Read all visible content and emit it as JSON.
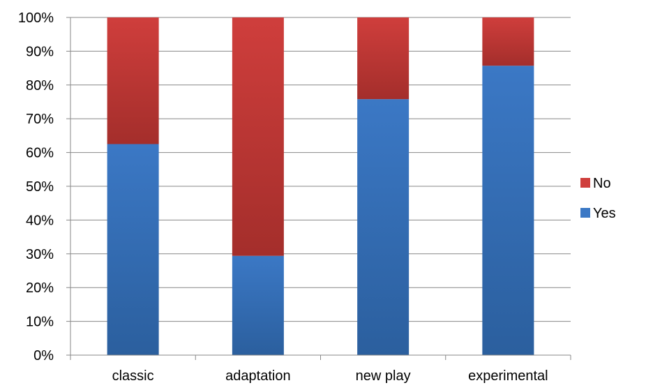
{
  "chart_data": {
    "type": "bar",
    "stacked": true,
    "percent": true,
    "categories": [
      "classic",
      "adaptation",
      "new play",
      "experimental"
    ],
    "series": [
      {
        "name": "Yes",
        "values": [
          62.5,
          29.4,
          75.8,
          85.7
        ]
      },
      {
        "name": "No",
        "values": [
          37.5,
          70.6,
          24.2,
          14.3
        ]
      }
    ],
    "ylim": [
      0,
      100
    ],
    "yticks": [
      "0%",
      "10%",
      "20%",
      "30%",
      "40%",
      "50%",
      "60%",
      "70%",
      "80%",
      "90%",
      "100%"
    ],
    "grid": true,
    "legend_placement": "right",
    "legend": [
      "No",
      "Yes"
    ],
    "colors": {
      "Yes": "#3b78c5",
      "Yes_dark": "#2b5f9e",
      "No": "#cf3e3c",
      "No_dark": "#a42e2b",
      "grid": "#878787",
      "axis": "#878787"
    }
  }
}
